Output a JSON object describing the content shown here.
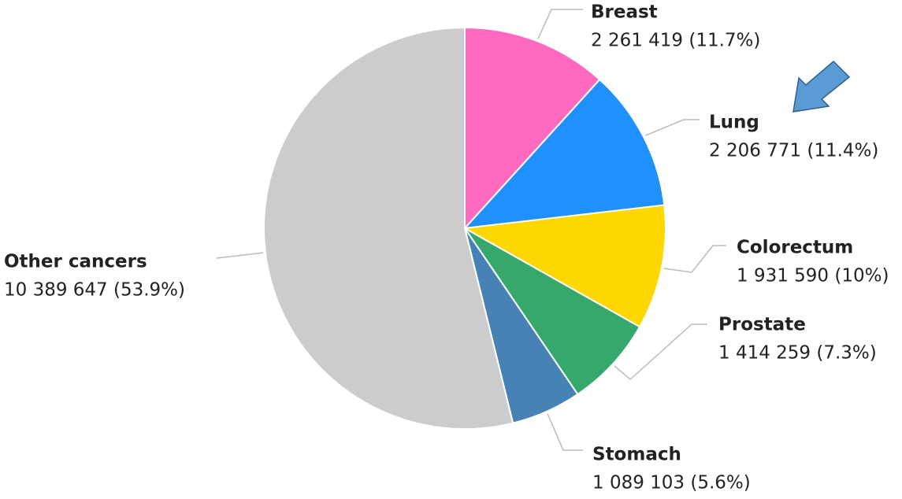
{
  "chart_data": {
    "type": "pie",
    "categories": [
      "Breast",
      "Lung",
      "Colorectum",
      "Prostate",
      "Stomach",
      "Other cancers"
    ],
    "values": [
      2261419,
      2206771,
      1931590,
      1414259,
      1089103,
      10389647
    ],
    "value_labels": [
      "2 261 419 (11.7%)",
      "2 206 771 (11.4%)",
      "1 931 590 (10%)",
      "1 414 259 (7.3%)",
      "1 089 103 (5.6%)",
      "10 389 647 (53.9%)"
    ],
    "colors": [
      "#ff69c0",
      "#1e90ff",
      "#ffd700",
      "#36a86c",
      "#4682b4",
      "#cccccc"
    ]
  }
}
